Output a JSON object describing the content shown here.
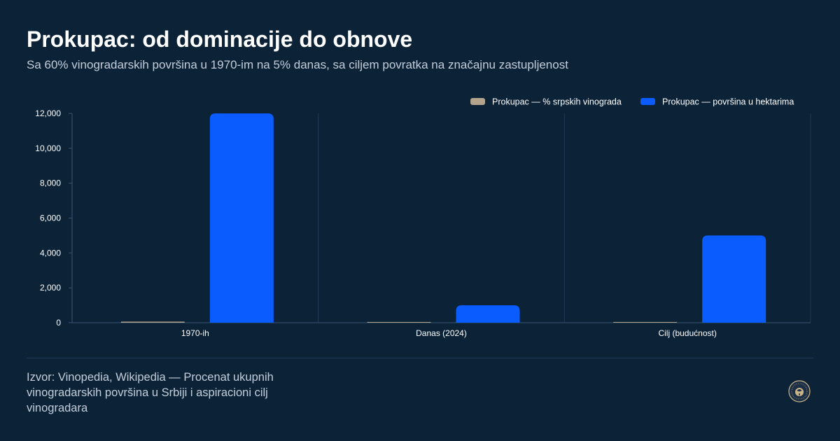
{
  "header": {
    "title": "Prokupac: od dominacije do obnove",
    "subtitle": "Sa 60% vinogradarskih površina u 1970-im na 5% danas, sa ciljem povratka na značajnu zastupljenost"
  },
  "footer": {
    "source": "Izvor: Vinopedia, Wikipedia — Procenat ukupnih vinogradarskih površina u Srbiji i aspiracioni cilj vinogradara",
    "badge_icon": "wine-seal-icon"
  },
  "colors": {
    "background": "#0b2237",
    "series_percent": "#b5a48c",
    "series_hectares": "#0b5cff",
    "grid": "#1f3a55"
  },
  "chart_data": {
    "type": "bar",
    "categories": [
      "1970-ih",
      "Danas (2024)",
      "Cilj (budućnost)"
    ],
    "series": [
      {
        "name": "Prokupac — % srpskih vinograda",
        "values": [
          60,
          5,
          25
        ]
      },
      {
        "name": "Prokupac — površina u hektarima",
        "values": [
          12000,
          1000,
          5000
        ]
      }
    ],
    "y_ticks": [
      "0",
      "2,000",
      "4,000",
      "6,000",
      "8,000",
      "10,000",
      "12,000"
    ],
    "ylim": [
      0,
      12000
    ],
    "legend_position": "top-right",
    "grid": "vertical-category-separators"
  }
}
